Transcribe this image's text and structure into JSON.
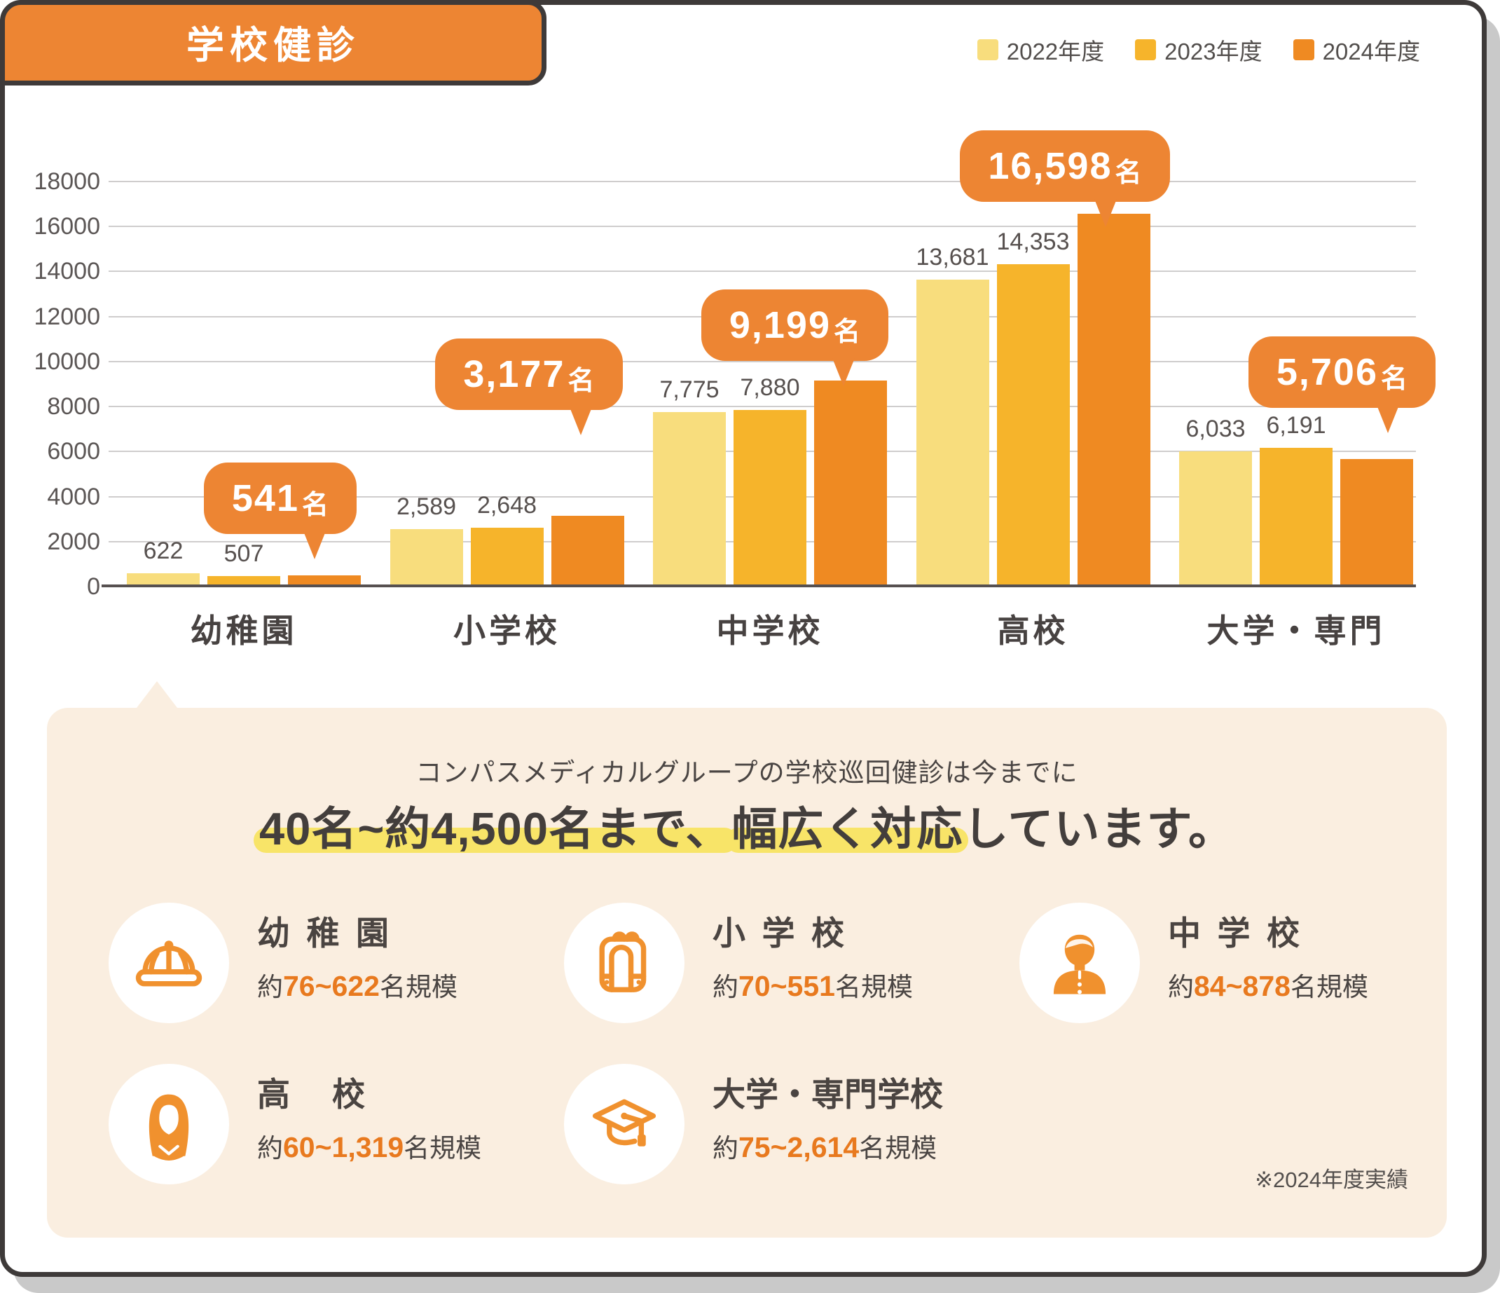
{
  "header": {
    "title": "学校健診"
  },
  "colors": {
    "accent": "#ED8533",
    "panel": "#FAEEE0",
    "border": "#3E3A39",
    "shadow": "#C9C9C9",
    "text": "#4A4543",
    "subtext": "#57514F",
    "orange": "#E8791E",
    "highlight": "#F8E468",
    "icon": "#F0912E",
    "grid": "#CFCDCD",
    "axis": "#565050"
  },
  "chart_data": {
    "type": "bar",
    "title": "学校健診",
    "categories": [
      "幼稚園",
      "小学校",
      "中学校",
      "高校",
      "大学・専門"
    ],
    "series": [
      {
        "name": "2022年度",
        "color": "#F8DD7D",
        "values": [
          622,
          2589,
          7775,
          13681,
          6033
        ]
      },
      {
        "name": "2023年度",
        "color": "#F6B42B",
        "values": [
          507,
          2648,
          7880,
          14353,
          6191
        ]
      },
      {
        "name": "2024年度",
        "color": "#EF8A22",
        "values": [
          541,
          3177,
          9199,
          16598,
          5706
        ]
      }
    ],
    "callouts": [
      "541名",
      "3,177名",
      "9,199名",
      "16,598名",
      "5,706名"
    ],
    "xlabel": "",
    "ylabel": "",
    "ylim": [
      0,
      18000
    ],
    "ytick_step": 2000,
    "grid": true,
    "legend_position": "top-right"
  },
  "panel": {
    "lead": "コンパスメディカルグループの学校巡回健診は今までに",
    "headline": [
      {
        "text": "40名~約4,500名まで、",
        "highlight": true
      },
      {
        "text": "幅広く対応",
        "highlight": true
      },
      {
        "text": "しています。",
        "highlight": false
      }
    ],
    "items": [
      {
        "icon": "kindergarten-cap-icon",
        "title": "幼稚園",
        "prefix": "約",
        "range": "76~622",
        "suffix": "名規模"
      },
      {
        "icon": "backpack-icon",
        "title": "小学校",
        "prefix": "約",
        "range": "70~551",
        "suffix": "名規模"
      },
      {
        "icon": "student-boy-icon",
        "title": "中学校",
        "prefix": "約",
        "range": "84~878",
        "suffix": "名規模"
      },
      {
        "icon": "student-girl-icon",
        "title": "高 校",
        "prefix": "約",
        "range": "60~1,319",
        "suffix": "名規模"
      },
      {
        "icon": "mortarboard-icon",
        "title": "大学・専門学校",
        "prefix": "約",
        "range": "75~2,614",
        "suffix": "名規模"
      }
    ],
    "note": "※2024年度実績"
  }
}
